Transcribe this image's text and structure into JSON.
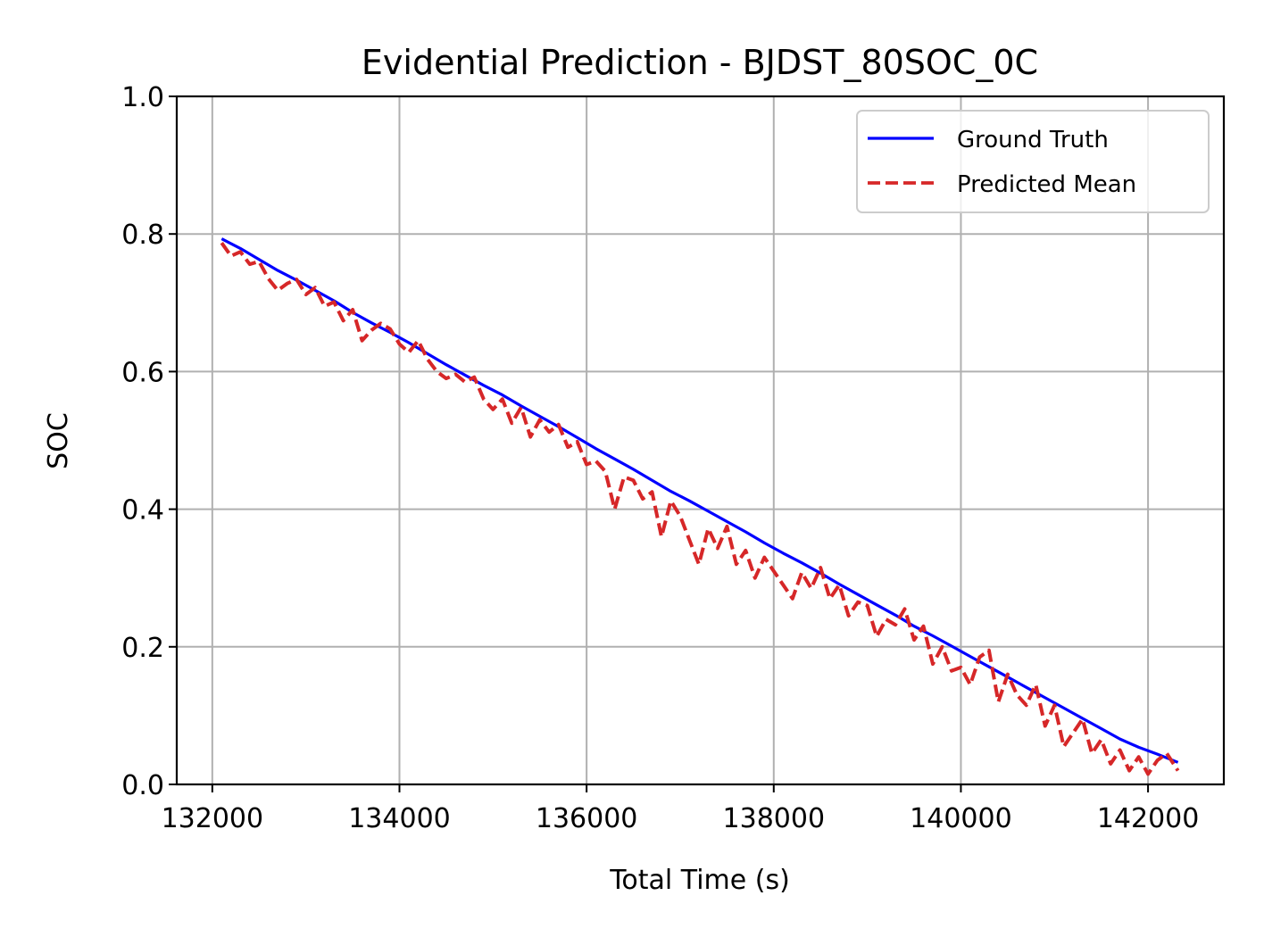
{
  "chart_data": {
    "type": "line",
    "title": "Evidential Prediction - BJDST_80SOC_0C",
    "xlabel": "Total Time (s)",
    "ylabel": "SOC",
    "xlim": [
      131620,
      142810
    ],
    "ylim": [
      0.0,
      1.0
    ],
    "xticks": [
      132000,
      134000,
      136000,
      138000,
      140000,
      142000
    ],
    "xtick_labels": [
      "132000",
      "134000",
      "136000",
      "138000",
      "140000",
      "142000"
    ],
    "yticks": [
      0.0,
      0.2,
      0.4,
      0.6,
      0.8,
      1.0
    ],
    "ytick_labels": [
      "0.0",
      "0.2",
      "0.4",
      "0.6",
      "0.8",
      "1.0"
    ],
    "grid": true,
    "legend_position": "top-right",
    "series": [
      {
        "name": "Ground Truth",
        "color": "#0000ff",
        "style": "solid",
        "x": [
          132100,
          132300,
          132500,
          132700,
          132900,
          133100,
          133300,
          133500,
          133700,
          133900,
          134100,
          134300,
          134500,
          134700,
          134900,
          135100,
          135300,
          135500,
          135700,
          135900,
          136100,
          136300,
          136500,
          136700,
          136900,
          137100,
          137300,
          137500,
          137700,
          137900,
          138100,
          138300,
          138500,
          138700,
          138900,
          139100,
          139300,
          139500,
          139700,
          139900,
          140100,
          140300,
          140500,
          140700,
          140900,
          141100,
          141300,
          141500,
          141700,
          141900,
          142100,
          142320
        ],
        "y": [
          0.793,
          0.779,
          0.763,
          0.747,
          0.733,
          0.718,
          0.703,
          0.686,
          0.671,
          0.657,
          0.642,
          0.626,
          0.61,
          0.595,
          0.58,
          0.566,
          0.55,
          0.535,
          0.52,
          0.504,
          0.488,
          0.473,
          0.458,
          0.442,
          0.426,
          0.412,
          0.397,
          0.382,
          0.367,
          0.351,
          0.336,
          0.322,
          0.307,
          0.291,
          0.276,
          0.261,
          0.246,
          0.23,
          0.216,
          0.201,
          0.186,
          0.171,
          0.156,
          0.141,
          0.126,
          0.111,
          0.096,
          0.081,
          0.066,
          0.054,
          0.044,
          0.032
        ]
      },
      {
        "name": "Predicted Mean",
        "color": "#d62728",
        "style": "dashed",
        "x": [
          132100,
          132200,
          132300,
          132400,
          132500,
          132600,
          132700,
          132800,
          132900,
          133000,
          133100,
          133200,
          133300,
          133400,
          133500,
          133600,
          133700,
          133800,
          133900,
          134000,
          134100,
          134200,
          134300,
          134400,
          134500,
          134600,
          134700,
          134800,
          134900,
          135000,
          135100,
          135200,
          135300,
          135400,
          135500,
          135600,
          135700,
          135800,
          135900,
          136000,
          136100,
          136200,
          136300,
          136400,
          136500,
          136600,
          136700,
          136800,
          136900,
          137000,
          137100,
          137200,
          137300,
          137400,
          137500,
          137600,
          137700,
          137800,
          137900,
          138000,
          138100,
          138200,
          138300,
          138400,
          138500,
          138600,
          138700,
          138800,
          138900,
          139000,
          139100,
          139200,
          139300,
          139400,
          139500,
          139600,
          139700,
          139800,
          139900,
          140000,
          140100,
          140200,
          140300,
          140400,
          140500,
          140600,
          140700,
          140800,
          140900,
          141000,
          141100,
          141200,
          141300,
          141400,
          141500,
          141600,
          141700,
          141800,
          141900,
          142000,
          142100,
          142200,
          142320
        ],
        "y": [
          0.787,
          0.768,
          0.774,
          0.756,
          0.76,
          0.735,
          0.718,
          0.728,
          0.734,
          0.712,
          0.722,
          0.695,
          0.701,
          0.674,
          0.69,
          0.645,
          0.66,
          0.67,
          0.662,
          0.64,
          0.628,
          0.645,
          0.618,
          0.6,
          0.59,
          0.596,
          0.585,
          0.592,
          0.56,
          0.545,
          0.56,
          0.525,
          0.548,
          0.505,
          0.53,
          0.512,
          0.523,
          0.49,
          0.498,
          0.465,
          0.47,
          0.455,
          0.4,
          0.447,
          0.442,
          0.415,
          0.425,
          0.36,
          0.412,
          0.39,
          0.355,
          0.32,
          0.372,
          0.343,
          0.375,
          0.32,
          0.34,
          0.3,
          0.33,
          0.31,
          0.29,
          0.27,
          0.308,
          0.285,
          0.315,
          0.27,
          0.29,
          0.245,
          0.265,
          0.26,
          0.215,
          0.24,
          0.232,
          0.255,
          0.21,
          0.23,
          0.175,
          0.2,
          0.165,
          0.17,
          0.145,
          0.185,
          0.195,
          0.12,
          0.16,
          0.13,
          0.115,
          0.145,
          0.085,
          0.115,
          0.055,
          0.075,
          0.095,
          0.045,
          0.065,
          0.03,
          0.05,
          0.02,
          0.04,
          0.015,
          0.035,
          0.045,
          0.02
        ]
      }
    ]
  }
}
